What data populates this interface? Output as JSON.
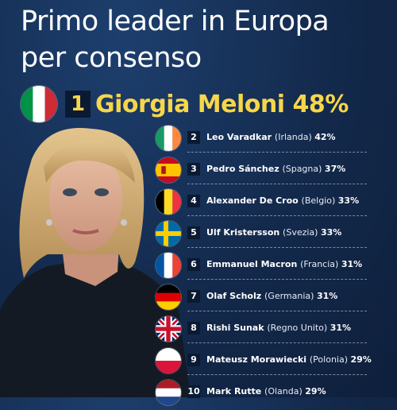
{
  "header": {
    "title_line1": "Primo leader in Europa",
    "title_line2": "per consenso"
  },
  "top": {
    "rank": "1",
    "name": "Giorgia Meloni",
    "percent": "48%",
    "flag_icon": "italy-flag-icon"
  },
  "colors": {
    "background": "#13294b",
    "accent_yellow": "#f7d64a"
  },
  "leaders": [
    {
      "rank": "2",
      "name": "Leo Varadkar",
      "country": "(Irlanda)",
      "percent": "42%",
      "flag_icon": "ireland-flag-icon"
    },
    {
      "rank": "3",
      "name": "Pedro Sánchez",
      "country": "(Spagna)",
      "percent": "37%",
      "flag_icon": "spain-flag-icon"
    },
    {
      "rank": "4",
      "name": "Alexander De Croo",
      "country": "(Belgio)",
      "percent": "33%",
      "flag_icon": "belgium-flag-icon"
    },
    {
      "rank": "5",
      "name": "Ulf Kristersson",
      "country": "(Svezia)",
      "percent": "33%",
      "flag_icon": "sweden-flag-icon"
    },
    {
      "rank": "6",
      "name": "Emmanuel Macron",
      "country": "(Francia)",
      "percent": "31%",
      "flag_icon": "france-flag-icon"
    },
    {
      "rank": "7",
      "name": "Olaf Scholz",
      "country": "(Germania)",
      "percent": "31%",
      "flag_icon": "germany-flag-icon"
    },
    {
      "rank": "8",
      "name": "Rishi Sunak",
      "country": "(Regno Unito)",
      "percent": "31%",
      "flag_icon": "uk-flag-icon"
    },
    {
      "rank": "9",
      "name": "Mateusz Morawiecki",
      "country": "(Polonia)",
      "percent": "29%",
      "flag_icon": "poland-flag-icon"
    },
    {
      "rank": "10",
      "name": "Mark Rutte",
      "country": "(Olanda)",
      "percent": "29%",
      "flag_icon": "netherlands-flag-icon"
    }
  ]
}
